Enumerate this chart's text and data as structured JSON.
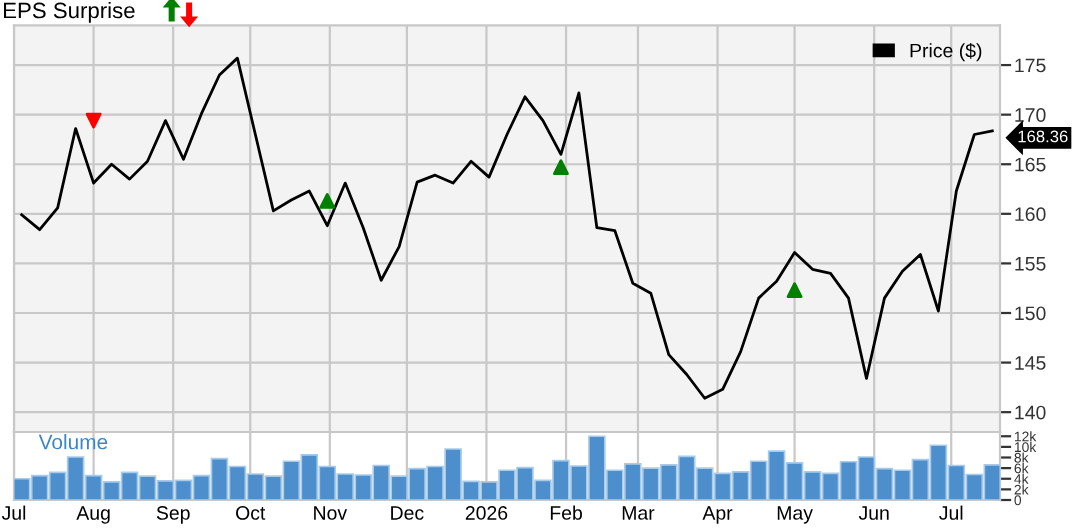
{
  "chart_data": [
    {
      "type": "line",
      "title": "EPS Surprise",
      "legend": "top right",
      "grid": true,
      "tick_labels": "y",
      "x": [
        "2025-07-04",
        "2025-07-11",
        "2025-07-18",
        "2025-07-25",
        "2025-08-01",
        "2025-08-08",
        "2025-08-15",
        "2025-08-22",
        "2025-08-29",
        "2025-09-05",
        "2025-09-12",
        "2025-09-19",
        "2025-09-26",
        "2025-10-03",
        "2025-10-10",
        "2025-10-17",
        "2025-10-24",
        "2025-10-31",
        "2025-11-07",
        "2025-11-14",
        "2025-11-21",
        "2025-11-28",
        "2025-12-05",
        "2025-12-12",
        "2025-12-19",
        "2025-12-26",
        "2026-01-02",
        "2026-01-09",
        "2026-01-16",
        "2026-01-23",
        "2026-01-30",
        "2026-02-06",
        "2026-02-13",
        "2026-02-20",
        "2026-02-27",
        "2026-03-06",
        "2026-03-13",
        "2026-03-20",
        "2026-03-27",
        "2026-04-03",
        "2026-04-10",
        "2026-04-17",
        "2026-04-24",
        "2026-05-01",
        "2026-05-08",
        "2026-05-15",
        "2026-05-22",
        "2026-05-29",
        "2026-06-05",
        "2026-06-12",
        "2026-06-19",
        "2026-06-26",
        "2026-07-03",
        "2026-07-10",
        "2026-07-17"
      ],
      "series": [
        {
          "name": "Price ($)",
          "type": "line",
          "color": "#000000",
          "values": [
            159.9,
            158.4,
            160.6,
            168.6,
            163.1,
            165.0,
            163.5,
            165.3,
            169.4,
            165.5,
            170.1,
            174.0,
            175.7,
            168.0,
            160.3,
            161.4,
            162.3,
            158.8,
            163.1,
            158.6,
            153.3,
            156.7,
            163.2,
            163.9,
            163.1,
            165.3,
            163.7,
            168.0,
            171.8,
            169.4,
            166.0,
            172.2,
            158.6,
            158.3,
            153.0,
            152.0,
            145.8,
            143.8,
            141.4,
            142.3,
            146.1,
            151.5,
            153.2,
            156.1,
            154.4,
            154.0,
            151.5,
            143.4,
            151.5,
            154.2,
            155.9,
            150.2,
            162.3,
            168.0,
            168.36
          ]
        },
        {
          "type": "scatter",
          "marker": "triangle_down",
          "color": "#ff0000",
          "x": [
            "2025-08-01"
          ],
          "values": [
            169.4
          ]
        },
        {
          "type": "scatter",
          "marker": "triangle",
          "color": "#008000",
          "x": [
            "2025-10-31",
            "2026-01-30",
            "2026-05-01"
          ],
          "values": [
            161.3,
            164.7,
            152.3
          ]
        }
      ],
      "annotations": [
        {
          "text": "168.36",
          "x": "2026-07-17",
          "y": 168.36
        }
      ],
      "xlim": [
        "2025-07-01",
        "2026-07-20"
      ],
      "xticks": [
        {
          "value": "2025-07-01",
          "label": null
        },
        {
          "value": "2025-08-01",
          "label": null
        },
        {
          "value": "2025-09-01",
          "label": null
        },
        {
          "value": "2025-10-01",
          "label": null
        },
        {
          "value": "2025-11-01",
          "label": null
        },
        {
          "value": "2025-12-01",
          "label": null
        },
        {
          "value": "2026-01-01",
          "label": null
        },
        {
          "value": "2026-02-01",
          "label": null
        },
        {
          "value": "2026-03-01",
          "label": null
        },
        {
          "value": "2026-04-01",
          "label": null
        },
        {
          "value": "2026-05-01",
          "label": null
        },
        {
          "value": "2026-06-01",
          "label": null
        },
        {
          "value": "2026-07-01",
          "label": null
        }
      ],
      "ylim": [
        138.0,
        179.0
      ],
      "yticks": [
        140,
        145,
        150,
        155,
        160,
        165,
        170,
        175
      ]
    },
    {
      "type": "bar",
      "title": "Volume",
      "grid": "x",
      "color": "#4d8fcc",
      "x": [
        "2025-07-04",
        "2025-07-11",
        "2025-07-18",
        "2025-07-25",
        "2025-08-01",
        "2025-08-08",
        "2025-08-15",
        "2025-08-22",
        "2025-08-29",
        "2025-09-05",
        "2025-09-12",
        "2025-09-19",
        "2025-09-26",
        "2025-10-03",
        "2025-10-10",
        "2025-10-17",
        "2025-10-24",
        "2025-10-31",
        "2025-11-07",
        "2025-11-14",
        "2025-11-21",
        "2025-11-28",
        "2025-12-05",
        "2025-12-12",
        "2025-12-19",
        "2025-12-26",
        "2026-01-02",
        "2026-01-09",
        "2026-01-16",
        "2026-01-23",
        "2026-01-30",
        "2026-02-06",
        "2026-02-13",
        "2026-02-20",
        "2026-02-27",
        "2026-03-06",
        "2026-03-13",
        "2026-03-20",
        "2026-03-27",
        "2026-04-03",
        "2026-04-10",
        "2026-04-17",
        "2026-04-24",
        "2026-05-01",
        "2026-05-08",
        "2026-05-15",
        "2026-05-22",
        "2026-05-29",
        "2026-06-05",
        "2026-06-12",
        "2026-06-19",
        "2026-06-26",
        "2026-07-03",
        "2026-07-10",
        "2026-07-17"
      ],
      "values": [
        4000,
        4600,
        5200,
        8100,
        4600,
        3400,
        5200,
        4500,
        3600,
        3700,
        4600,
        7800,
        6300,
        4900,
        4500,
        7300,
        8500,
        6300,
        4900,
        4700,
        6500,
        4500,
        5900,
        6300,
        9600,
        3500,
        3400,
        5600,
        6100,
        3700,
        7400,
        6400,
        12000,
        5600,
        6800,
        6000,
        6600,
        8200,
        6000,
        5000,
        5300,
        7300,
        9200,
        7000,
        5300,
        5000,
        7200,
        8100,
        5900,
        5600,
        7600,
        10300,
        6500,
        4800,
        6600
      ],
      "xlim": [
        "2025-07-01",
        "2026-07-20"
      ],
      "xticks": [
        {
          "value": "2025-07-01",
          "label": "Jul"
        },
        {
          "value": "2025-08-01",
          "label": "Aug"
        },
        {
          "value": "2025-09-01",
          "label": "Sep"
        },
        {
          "value": "2025-10-01",
          "label": "Oct"
        },
        {
          "value": "2025-11-01",
          "label": "Nov"
        },
        {
          "value": "2025-12-01",
          "label": "Dec"
        },
        {
          "value": "2026-01-01",
          "label": "2026"
        },
        {
          "value": "2026-02-01",
          "label": "Feb"
        },
        {
          "value": "2026-03-01",
          "label": "Mar"
        },
        {
          "value": "2026-04-01",
          "label": "Apr"
        },
        {
          "value": "2026-05-01",
          "label": "May"
        },
        {
          "value": "2026-06-01",
          "label": "Jun"
        },
        {
          "value": "2026-07-01",
          "label": "Jul"
        }
      ],
      "ylim": [
        0,
        12800
      ],
      "yticks": [
        0,
        {
          "value": 2000,
          "label": "2k"
        },
        {
          "value": 4000,
          "label": "4k"
        },
        {
          "value": 6000,
          "label": "6k"
        },
        {
          "value": 8000,
          "label": "8k"
        },
        {
          "value": 10000,
          "label": "10k"
        },
        {
          "value": 12000,
          "label": "12k"
        }
      ]
    }
  ]
}
